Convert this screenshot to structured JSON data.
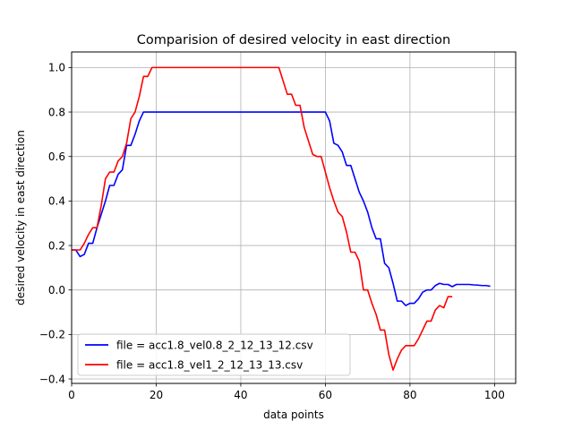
{
  "chart_data": {
    "type": "line",
    "title": "Comparision of desired velocity in east direction",
    "xlabel": "data points",
    "ylabel": "desired velocity in east direction",
    "xlim": [
      0,
      105
    ],
    "ylim": [
      -0.42,
      1.07
    ],
    "xticks": [
      0,
      20,
      40,
      60,
      80,
      100
    ],
    "xtick_labels": [
      "0",
      "20",
      "40",
      "60",
      "80",
      "100"
    ],
    "yticks": [
      -0.4,
      -0.2,
      0.0,
      0.2,
      0.4,
      0.6,
      0.8,
      1.0
    ],
    "ytick_labels": [
      "−0.4",
      "−0.2",
      "0.0",
      "0.2",
      "0.4",
      "0.6",
      "0.8",
      "1.0"
    ],
    "grid": true,
    "legend_position": "lower-left",
    "series": [
      {
        "name": "file = acc1.8_vel0.8_2_12_13_12.csv",
        "color": "#0000ff",
        "x": [
          0,
          1,
          2,
          3,
          4,
          5,
          6,
          7,
          8,
          9,
          10,
          11,
          12,
          13,
          14,
          15,
          16,
          17,
          18,
          19,
          20,
          25,
          30,
          35,
          40,
          45,
          50,
          55,
          60,
          61,
          62,
          63,
          64,
          65,
          66,
          67,
          68,
          69,
          70,
          71,
          72,
          73,
          74,
          75,
          76,
          77,
          78,
          79,
          80,
          81,
          82,
          83,
          84,
          85,
          86,
          87,
          88,
          89,
          90,
          91,
          92,
          93,
          94,
          95,
          96,
          97,
          98,
          99
        ],
        "values": [
          0.18,
          0.18,
          0.15,
          0.16,
          0.21,
          0.21,
          0.28,
          0.34,
          0.4,
          0.47,
          0.47,
          0.52,
          0.54,
          0.65,
          0.65,
          0.7,
          0.76,
          0.8,
          0.8,
          0.8,
          0.8,
          0.8,
          0.8,
          0.8,
          0.8,
          0.8,
          0.8,
          0.8,
          0.8,
          0.76,
          0.66,
          0.65,
          0.62,
          0.56,
          0.56,
          0.5,
          0.44,
          0.4,
          0.35,
          0.28,
          0.23,
          0.23,
          0.12,
          0.1,
          0.03,
          -0.05,
          -0.05,
          -0.07,
          -0.06,
          -0.06,
          -0.04,
          -0.01,
          0.0,
          0.0,
          0.02,
          0.03,
          0.025,
          0.025,
          0.015,
          0.025,
          0.025,
          0.025,
          0.025,
          0.023,
          0.022,
          0.02,
          0.02,
          0.017
        ]
      },
      {
        "name": "file = acc1.8_vel1_2_12_13_13.csv",
        "color": "#ff0000",
        "x": [
          0,
          1,
          2,
          3,
          4,
          5,
          6,
          7,
          8,
          9,
          10,
          11,
          12,
          13,
          14,
          15,
          16,
          17,
          18,
          19,
          20,
          25,
          30,
          35,
          40,
          45,
          49,
          50,
          51,
          52,
          53,
          54,
          55,
          56,
          57,
          58,
          59,
          60,
          61,
          62,
          63,
          64,
          65,
          66,
          67,
          68,
          69,
          70,
          71,
          72,
          73,
          74,
          75,
          76,
          77,
          78,
          79,
          80,
          81,
          82,
          83,
          84,
          85,
          86,
          87,
          88,
          89,
          90
        ],
        "values": [
          0.18,
          0.18,
          0.18,
          0.21,
          0.25,
          0.28,
          0.28,
          0.38,
          0.5,
          0.53,
          0.53,
          0.58,
          0.6,
          0.66,
          0.77,
          0.8,
          0.87,
          0.96,
          0.96,
          1.0,
          1.0,
          1.0,
          1.0,
          1.0,
          1.0,
          1.0,
          1.0,
          0.94,
          0.88,
          0.88,
          0.83,
          0.83,
          0.73,
          0.67,
          0.61,
          0.6,
          0.6,
          0.53,
          0.46,
          0.4,
          0.35,
          0.33,
          0.26,
          0.17,
          0.17,
          0.13,
          0.0,
          0.0,
          -0.06,
          -0.11,
          -0.18,
          -0.18,
          -0.29,
          -0.36,
          -0.31,
          -0.27,
          -0.25,
          -0.25,
          -0.25,
          -0.22,
          -0.18,
          -0.14,
          -0.14,
          -0.09,
          -0.07,
          -0.08,
          -0.03,
          -0.03
        ]
      }
    ]
  }
}
